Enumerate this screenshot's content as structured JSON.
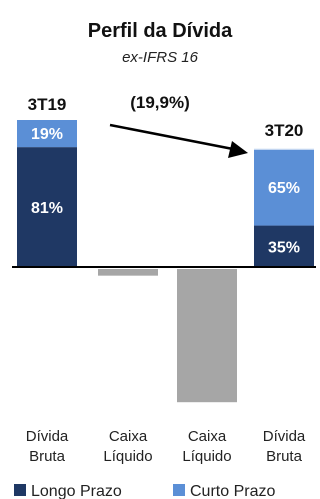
{
  "chart_data": {
    "type": "bar",
    "title": "Perfil da Dívida",
    "subtitle": "ex-IFRS 16",
    "categories": [
      [
        "Dívida",
        "Bruta"
      ],
      [
        "Caixa",
        "Líquido"
      ],
      [
        "Caixa",
        "Líquido"
      ],
      [
        "Dívida",
        "Bruta"
      ]
    ],
    "bars": [
      {
        "value": 1.0,
        "segments": [
          {
            "series": "Longo Prazo",
            "label": "81%",
            "share": 0.81
          },
          {
            "series": "Curto Prazo",
            "label": "19%",
            "share": 0.19
          }
        ]
      },
      {
        "value": -0.05
      },
      {
        "value": -1.0
      },
      {
        "value": 0.8,
        "segments": [
          {
            "series": "Longo Prazo",
            "label": "35%",
            "share": 0.35
          },
          {
            "series": "Curto Prazo",
            "label": "65%",
            "share": 0.65
          }
        ]
      }
    ],
    "period_labels": [
      "3T19",
      "3T20"
    ],
    "change_label": "(19,9%)",
    "legend": [
      {
        "name": "Longo Prazo",
        "color": "#1f3864"
      },
      {
        "name": "Curto Prazo",
        "color": "#5b8fd6"
      }
    ],
    "neutral_color": "#a6a6a6",
    "axis_color": "#000000",
    "legend_position": "bottom"
  }
}
